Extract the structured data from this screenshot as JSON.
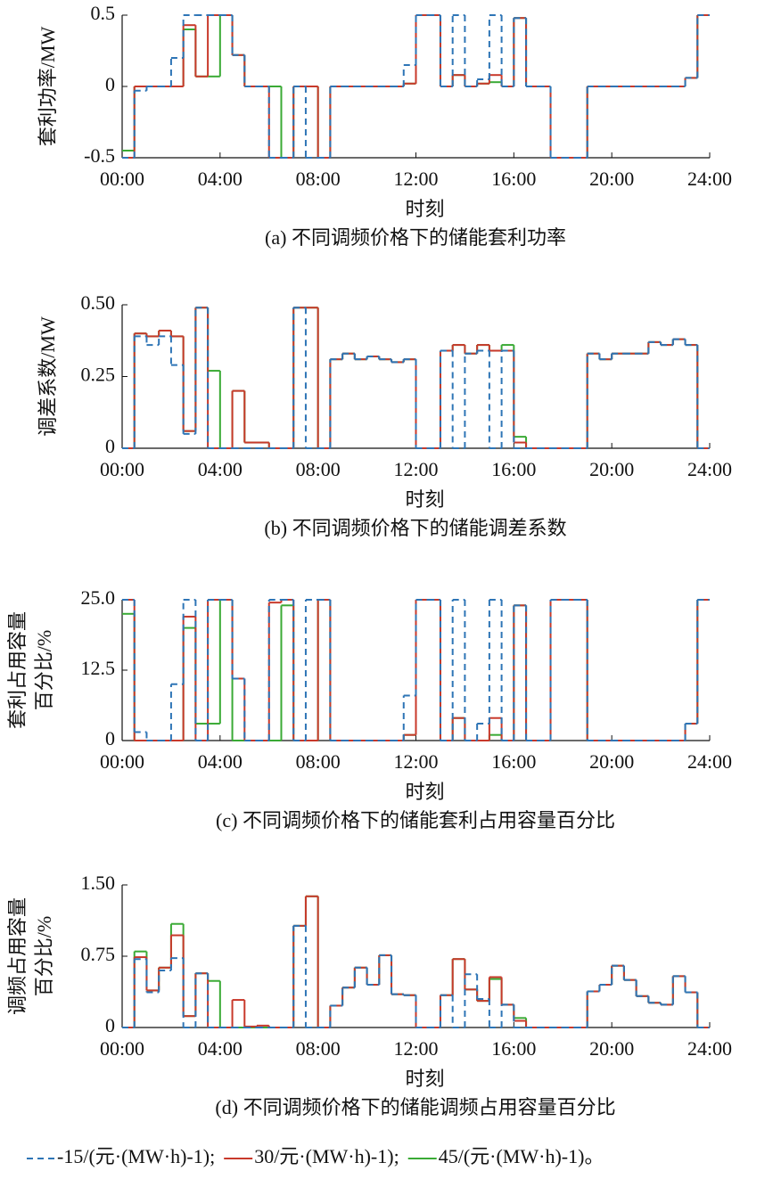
{
  "chart_data": [
    {
      "type": "step",
      "ylabel": [
        "套利功率/MW"
      ],
      "xlabel": "时刻",
      "caption": "(a) 不同调频价格下的储能套利功率",
      "x": [
        0,
        0.5,
        1,
        1.5,
        2,
        2.5,
        3,
        3.5,
        4,
        4.5,
        5,
        5.5,
        6,
        6.5,
        7,
        7.5,
        8,
        8.5,
        9,
        9.5,
        10,
        10.5,
        11,
        11.5,
        12,
        12.5,
        13,
        13.5,
        14,
        14.5,
        15,
        15.5,
        16,
        16.5,
        17,
        17.5,
        18,
        18.5,
        19,
        19.5,
        20,
        20.5,
        21,
        21.5,
        22,
        22.5,
        23,
        23.5
      ],
      "xlim": [
        0,
        24
      ],
      "xticks": [
        {
          "value": 0,
          "label": "00:00"
        },
        {
          "value": 4,
          "label": "04:00"
        },
        {
          "value": 8,
          "label": "08:00"
        },
        {
          "value": 12,
          "label": "12:00"
        },
        {
          "value": 16,
          "label": "16:00"
        },
        {
          "value": 20,
          "label": "20:00"
        },
        {
          "value": 24,
          "label": "24:00"
        }
      ],
      "ylim": [
        -0.5,
        0.5
      ],
      "yticks": [
        -0.5,
        0,
        0.5
      ],
      "series": [
        {
          "name": "45/(元·(MW·h)-1)",
          "color": "#3aaa35",
          "style": "solid",
          "values": [
            -0.45,
            0,
            0,
            0,
            0,
            0.4,
            0.07,
            0.07,
            0.5,
            0.22,
            0,
            0,
            0,
            -0.5,
            0,
            0,
            -0.5,
            0,
            0,
            0,
            0,
            0,
            0,
            0.02,
            0.5,
            0.5,
            0,
            0.08,
            0,
            0.02,
            0.03,
            0,
            0.48,
            0,
            0,
            -0.5,
            -0.5,
            -0.5,
            0,
            0,
            0,
            0,
            0,
            0,
            0,
            0,
            0.06,
            0.5
          ]
        },
        {
          "name": "30/元·(MW·h)-1)",
          "color": "#c8392b",
          "style": "solid",
          "values": [
            -0.5,
            0,
            0,
            0,
            0,
            0.43,
            0.07,
            0.5,
            0.5,
            0.22,
            0,
            0,
            -0.5,
            -0.5,
            0,
            0,
            -0.5,
            0,
            0,
            0,
            0,
            0,
            0,
            0.02,
            0.5,
            0.5,
            0,
            0.08,
            0,
            0.02,
            0.08,
            0,
            0.48,
            0,
            0,
            -0.5,
            -0.5,
            -0.5,
            0,
            0,
            0,
            0,
            0,
            0,
            0,
            0,
            0.06,
            0.5
          ]
        },
        {
          "name": "-15/(元·(MW·h)-1)",
          "color": "#2e75b6",
          "style": "dashed",
          "values": [
            -0.5,
            -0.03,
            0,
            0,
            0.2,
            0.5,
            0.5,
            0.5,
            0.5,
            0.22,
            0,
            0,
            -0.5,
            -0.5,
            0,
            -0.5,
            -0.5,
            0,
            0,
            0,
            0,
            0,
            0,
            0.15,
            0.5,
            0.5,
            0,
            0.5,
            0,
            0.05,
            0.5,
            0,
            0.48,
            0,
            0,
            -0.5,
            -0.5,
            -0.5,
            0,
            0,
            0,
            0,
            0,
            0,
            0,
            0,
            0.06,
            0.5
          ]
        }
      ]
    },
    {
      "type": "step",
      "ylabel": [
        "调差系数/MW"
      ],
      "xlabel": "时刻",
      "caption": "(b) 不同调频价格下的储能调差系数",
      "x": [
        0,
        0.5,
        1,
        1.5,
        2,
        2.5,
        3,
        3.5,
        4,
        4.5,
        5,
        5.5,
        6,
        6.5,
        7,
        7.5,
        8,
        8.5,
        9,
        9.5,
        10,
        10.5,
        11,
        11.5,
        12,
        12.5,
        13,
        13.5,
        14,
        14.5,
        15,
        15.5,
        16,
        16.5,
        17,
        17.5,
        18,
        18.5,
        19,
        19.5,
        20,
        20.5,
        21,
        21.5,
        22,
        22.5,
        23,
        23.5
      ],
      "xlim": [
        0,
        24
      ],
      "xticks": [
        {
          "value": 0,
          "label": "00:00"
        },
        {
          "value": 4,
          "label": "04:00"
        },
        {
          "value": 8,
          "label": "08:00"
        },
        {
          "value": 12,
          "label": "12:00"
        },
        {
          "value": 16,
          "label": "16:00"
        },
        {
          "value": 20,
          "label": "20:00"
        },
        {
          "value": 24,
          "label": "24:00"
        }
      ],
      "ylim": [
        0,
        0.5
      ],
      "yticks": [
        0,
        0.25,
        {
          "value": 0.5,
          "label": "0.50"
        }
      ],
      "series": [
        {
          "name": "45/(元·(MW·h)-1)",
          "color": "#3aaa35",
          "style": "solid",
          "values": [
            0,
            0.4,
            0.39,
            0.41,
            0.39,
            0.06,
            0.49,
            0.27,
            0,
            0.2,
            0.02,
            0.02,
            0,
            0,
            0.49,
            0.49,
            0,
            0.31,
            0.33,
            0.31,
            0.32,
            0.31,
            0.3,
            0.31,
            0,
            0,
            0.34,
            0.36,
            0.33,
            0.36,
            0.34,
            0.36,
            0.04,
            0,
            0,
            0,
            0,
            0,
            0.33,
            0.31,
            0.33,
            0.33,
            0.33,
            0.37,
            0.36,
            0.38,
            0.36,
            0
          ]
        },
        {
          "name": "30/元·(MW·h)-1)",
          "color": "#c8392b",
          "style": "solid",
          "values": [
            0,
            0.4,
            0.39,
            0.41,
            0.39,
            0.06,
            0.49,
            0,
            0,
            0.2,
            0.02,
            0.02,
            0,
            0,
            0.49,
            0.49,
            0,
            0.31,
            0.33,
            0.31,
            0.32,
            0.31,
            0.3,
            0.31,
            0,
            0,
            0.34,
            0.36,
            0.33,
            0.36,
            0.34,
            0.34,
            0.02,
            0,
            0,
            0,
            0,
            0,
            0.33,
            0.31,
            0.33,
            0.33,
            0.33,
            0.37,
            0.36,
            0.38,
            0.36,
            0
          ]
        },
        {
          "name": "-15/(元·(MW·h)-1)",
          "color": "#2e75b6",
          "style": "dashed",
          "values": [
            0,
            0.39,
            0.36,
            0.39,
            0.29,
            0.05,
            0.49,
            0,
            0,
            0,
            0,
            0,
            0,
            0,
            0.49,
            0,
            0,
            0.31,
            0.33,
            0.31,
            0.32,
            0.31,
            0.3,
            0.31,
            0,
            0,
            0.34,
            0,
            0.33,
            0.34,
            0,
            0.34,
            0,
            0,
            0,
            0,
            0,
            0,
            0.33,
            0.31,
            0.33,
            0.33,
            0.33,
            0.37,
            0.36,
            0.38,
            0.36,
            0
          ]
        }
      ]
    },
    {
      "type": "step",
      "ylabel": [
        "套利占用容量",
        "百分比/%"
      ],
      "xlabel": "时刻",
      "caption": "(c) 不同调频价格下的储能套利占用容量百分比",
      "x": [
        0,
        0.5,
        1,
        1.5,
        2,
        2.5,
        3,
        3.5,
        4,
        4.5,
        5,
        5.5,
        6,
        6.5,
        7,
        7.5,
        8,
        8.5,
        9,
        9.5,
        10,
        10.5,
        11,
        11.5,
        12,
        12.5,
        13,
        13.5,
        14,
        14.5,
        15,
        15.5,
        16,
        16.5,
        17,
        17.5,
        18,
        18.5,
        19,
        19.5,
        20,
        20.5,
        21,
        21.5,
        22,
        22.5,
        23,
        23.5
      ],
      "xlim": [
        0,
        24
      ],
      "xticks": [
        {
          "value": 0,
          "label": "00:00"
        },
        {
          "value": 4,
          "label": "04:00"
        },
        {
          "value": 8,
          "label": "08:00"
        },
        {
          "value": 12,
          "label": "12:00"
        },
        {
          "value": 16,
          "label": "16:00"
        },
        {
          "value": 20,
          "label": "20:00"
        },
        {
          "value": 24,
          "label": "24:00"
        }
      ],
      "ylim": [
        0,
        25
      ],
      "yticks": [
        0,
        12.5,
        {
          "value": 25,
          "label": "25.0"
        }
      ],
      "series": [
        {
          "name": "45/(元·(MW·h)-1)",
          "color": "#3aaa35",
          "style": "solid",
          "values": [
            22.5,
            0,
            0,
            0,
            0,
            20,
            3,
            3,
            25,
            0,
            0,
            0,
            0,
            24,
            0,
            0,
            25,
            0,
            0,
            0,
            0,
            0,
            0,
            1,
            25,
            25,
            0,
            4,
            0,
            0,
            1,
            0,
            24,
            0,
            0,
            25,
            25,
            25,
            0,
            0,
            0,
            0,
            0,
            0,
            0,
            0,
            3,
            25
          ]
        },
        {
          "name": "30/元·(MW·h)-1)",
          "color": "#c8392b",
          "style": "solid",
          "values": [
            25,
            0,
            0,
            0,
            0,
            22,
            0,
            25,
            25,
            11,
            0,
            0,
            24.5,
            25,
            0,
            0,
            25,
            0,
            0,
            0,
            0,
            0,
            0,
            1,
            25,
            25,
            0,
            4,
            0,
            0,
            4,
            0,
            24,
            0,
            0,
            25,
            25,
            25,
            0,
            0,
            0,
            0,
            0,
            0,
            0,
            0,
            3,
            25
          ]
        },
        {
          "name": "-15/(元·(MW·h)-1)",
          "color": "#2e75b6",
          "style": "dashed",
          "values": [
            25,
            1.5,
            0,
            0,
            10,
            25,
            0,
            25,
            25,
            11,
            0,
            0,
            25,
            25,
            0,
            25,
            25,
            0,
            0,
            0,
            0,
            0,
            0,
            8,
            25,
            25,
            0,
            25,
            0,
            3,
            25,
            0,
            24,
            0,
            0,
            25,
            25,
            25,
            0,
            0,
            0,
            0,
            0,
            0,
            0,
            0,
            3,
            25
          ]
        }
      ]
    },
    {
      "type": "step",
      "ylabel": [
        "调频占用容量",
        "百分比/%"
      ],
      "xlabel": "时刻",
      "caption": "(d) 不同调频价格下的储能调频占用容量百分比",
      "x": [
        0,
        0.5,
        1,
        1.5,
        2,
        2.5,
        3,
        3.5,
        4,
        4.5,
        5,
        5.5,
        6,
        6.5,
        7,
        7.5,
        8,
        8.5,
        9,
        9.5,
        10,
        10.5,
        11,
        11.5,
        12,
        12.5,
        13,
        13.5,
        14,
        14.5,
        15,
        15.5,
        16,
        16.5,
        17,
        17.5,
        18,
        18.5,
        19,
        19.5,
        20,
        20.5,
        21,
        21.5,
        22,
        22.5,
        23,
        23.5
      ],
      "xlim": [
        0,
        24
      ],
      "xticks": [
        {
          "value": 0,
          "label": "00:00"
        },
        {
          "value": 4,
          "label": "04:00"
        },
        {
          "value": 8,
          "label": "08:00"
        },
        {
          "value": 12,
          "label": "12:00"
        },
        {
          "value": 16,
          "label": "16:00"
        },
        {
          "value": 20,
          "label": "20:00"
        },
        {
          "value": 24,
          "label": "24:00"
        }
      ],
      "ylim": [
        0,
        1.5
      ],
      "yticks": [
        0,
        0.75,
        {
          "value": 1.5,
          "label": "1.50"
        }
      ],
      "series": [
        {
          "name": "45/(元·(MW·h)-1)",
          "color": "#3aaa35",
          "style": "solid",
          "values": [
            0,
            0.8,
            0.39,
            0.63,
            1.09,
            0.12,
            0.57,
            0.49,
            0,
            0,
            0,
            0,
            0,
            0,
            1.07,
            1.38,
            0,
            0.23,
            0.42,
            0.63,
            0.45,
            0.76,
            0.35,
            0.34,
            0,
            0,
            0.34,
            0.72,
            0.4,
            0.28,
            0.51,
            0.24,
            0.1,
            0,
            0,
            0,
            0,
            0,
            0.38,
            0.45,
            0.65,
            0.5,
            0.33,
            0.26,
            0.24,
            0.54,
            0.37,
            0
          ]
        },
        {
          "name": "30/元·(MW·h)-1)",
          "color": "#c8392b",
          "style": "solid",
          "values": [
            0,
            0.74,
            0.39,
            0.63,
            0.97,
            0.12,
            0.57,
            0,
            0,
            0.29,
            0.01,
            0.02,
            0,
            0,
            1.07,
            1.38,
            0,
            0.23,
            0.42,
            0.63,
            0.45,
            0.76,
            0.35,
            0.34,
            0,
            0,
            0.34,
            0.72,
            0.4,
            0.28,
            0.53,
            0.24,
            0.07,
            0,
            0,
            0,
            0,
            0,
            0.38,
            0.45,
            0.65,
            0.5,
            0.33,
            0.26,
            0.24,
            0.54,
            0.37,
            0
          ]
        },
        {
          "name": "-15/(元·(MW·h)-1)",
          "color": "#2e75b6",
          "style": "dashed",
          "values": [
            0,
            0.72,
            0.37,
            0.6,
            0.73,
            0,
            0.57,
            0,
            0,
            0,
            0,
            0,
            0,
            0,
            1.07,
            0,
            0,
            0.23,
            0.42,
            0.63,
            0.45,
            0.76,
            0.35,
            0.34,
            0,
            0,
            0.34,
            0,
            0.56,
            0.3,
            0,
            0.24,
            0,
            0,
            0,
            0,
            0,
            0,
            0.38,
            0.45,
            0.65,
            0.5,
            0.33,
            0.26,
            0.24,
            0.54,
            0.37,
            0
          ]
        }
      ]
    }
  ],
  "legend_order": [
    2,
    1,
    0
  ],
  "legend_punctuation": [
    ";",
    ";",
    "。"
  ]
}
